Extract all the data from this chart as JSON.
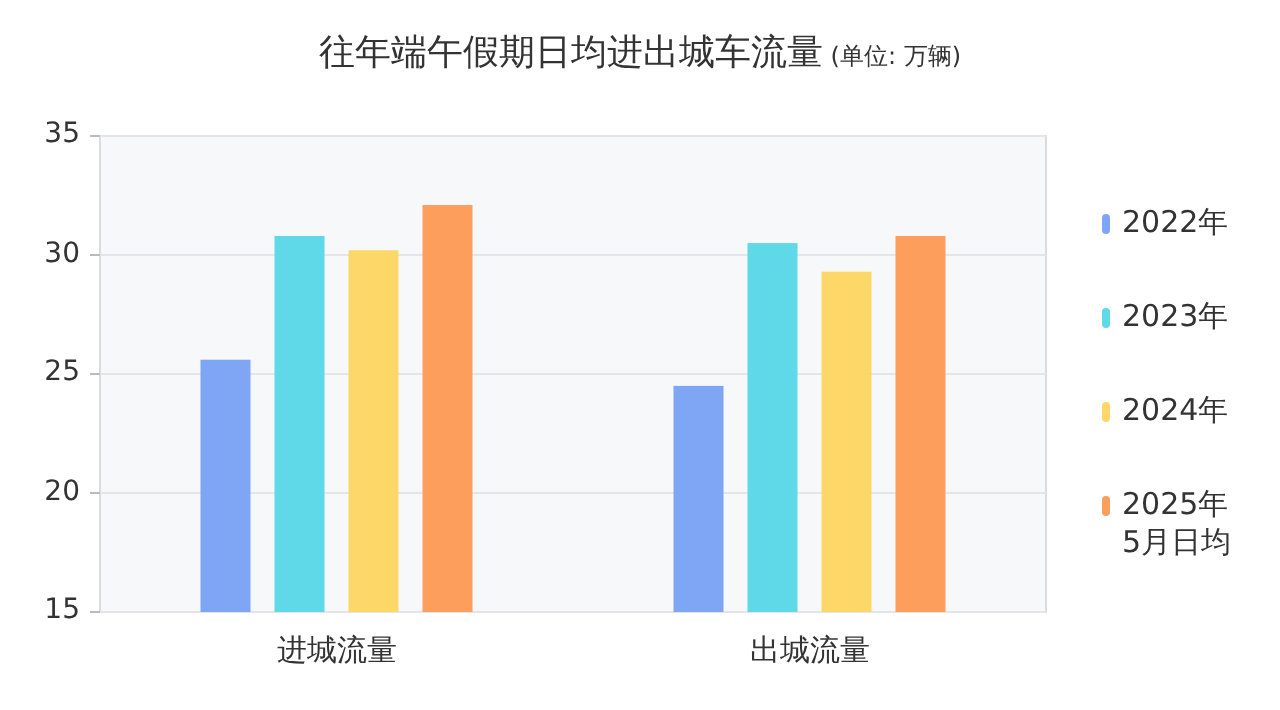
{
  "chart_data": {
    "type": "bar",
    "title": "往年端午假期日均进出城车流量",
    "subtitle": "(单位: 万辆)",
    "categories": [
      "进城流量",
      "出城流量"
    ],
    "series": [
      {
        "name": "2022年",
        "color": "#7fa6f5",
        "values": [
          25.6,
          24.5
        ]
      },
      {
        "name": "2023年",
        "color": "#5fd8e8",
        "values": [
          30.8,
          30.5
        ]
      },
      {
        "name": "2024年",
        "color": "#fdd868",
        "values": [
          30.2,
          29.3
        ]
      },
      {
        "name": "2025年5月日均",
        "color": "#fd9e5c",
        "values": [
          32.1,
          30.8
        ]
      }
    ],
    "ylim": [
      15,
      35
    ],
    "yticks": [
      15,
      20,
      25,
      30,
      35
    ],
    "grid": "y",
    "legend": "right"
  }
}
